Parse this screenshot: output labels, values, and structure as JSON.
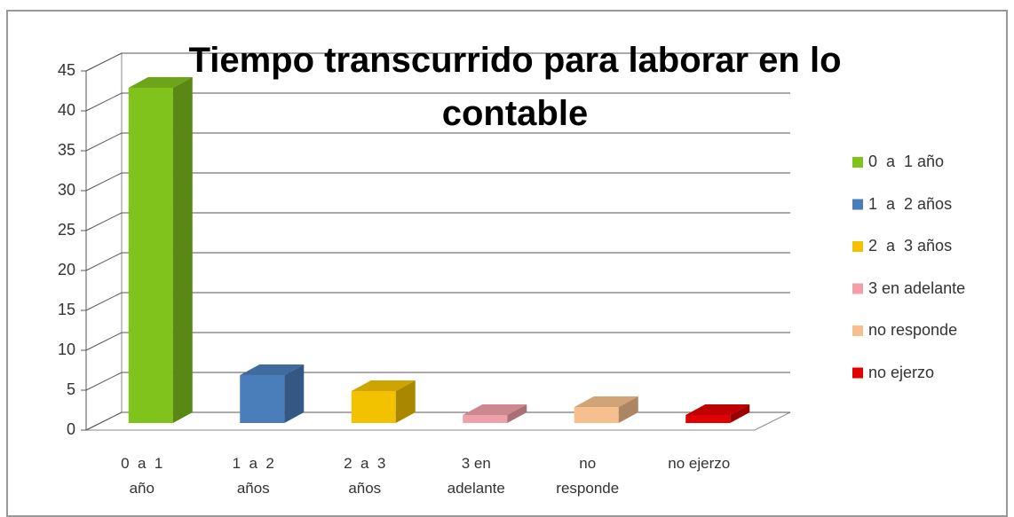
{
  "chart_data": {
    "type": "bar3d",
    "title": "Tiempo transcurrido para laborar en lo contable",
    "categories": [
      "0  a  1 año",
      "1  a  2 años",
      "2  a  3 años",
      "3 en adelante",
      "no responde",
      "no ejerzo"
    ],
    "values": [
      42,
      6,
      4,
      1,
      2,
      1
    ],
    "colors": [
      "#7fc31c",
      "#4a7ebb",
      "#f2c200",
      "#f0a0a8",
      "#f5c08e",
      "#e00000"
    ],
    "ylim": [
      0,
      45
    ],
    "yticks": [
      0,
      5,
      10,
      15,
      20,
      25,
      30,
      35,
      40,
      45
    ],
    "grid": true,
    "legend": "right"
  }
}
